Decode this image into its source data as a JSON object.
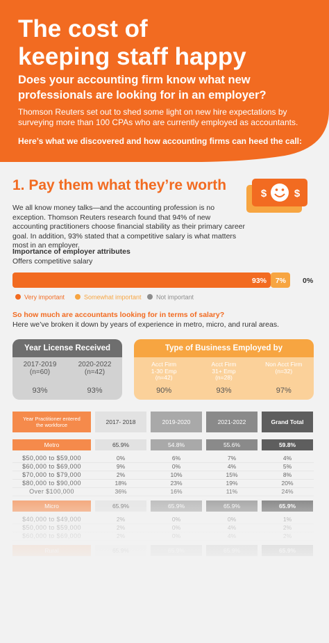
{
  "header": {
    "title_lines": [
      "The cost of",
      "keeping staff happy"
    ],
    "subtitle": "Does your accounting firm know what new professionals are looking for in an employer?",
    "intro": "Thomson Reuters set out to shed some light on new hire expectations by surveying more than 100 CPAs who are currently employed as accountants.",
    "cta": "Here’s what we discovered and how accounting firms can heed the call:"
  },
  "section": {
    "heading": "1. Pay them what they’re worth",
    "icon_symbols": [
      "$",
      "$"
    ],
    "body": "We all know money talks—and the accounting profession is no exception. Thomson Reuters research found that 94% of new accounting practitioners choose financial stability as their primary career goal. In addition, 93% stated that a competitive salary is what matters most in an employer."
  },
  "chart_data": {
    "type": "bar",
    "orientation": "horizontal",
    "stacked": true,
    "title": "Importance of employer attributes",
    "categories": [
      "Offers competitive salary"
    ],
    "xlim": [
      0,
      100
    ],
    "series": [
      {
        "name": "Very important",
        "color": "#f26b21",
        "values": [
          93
        ],
        "value_labels": [
          "93%"
        ]
      },
      {
        "name": "Somewhat important",
        "color": "#f7a541",
        "values": [
          7
        ],
        "value_labels": [
          "7%"
        ]
      },
      {
        "name": "Not important",
        "color": "#8c8c8c",
        "values": [
          0
        ],
        "value_labels": [
          "0%"
        ]
      }
    ]
  },
  "salary": {
    "question": "So how much are accountants looking for in terms of salary?",
    "note": "Here we’ve broken it down by years of experience in metro, micro, and rural areas."
  },
  "cards": [
    {
      "title": "Year License Received",
      "columns": [
        {
          "label_lines": [
            "2017-2019",
            "(n=60)"
          ],
          "value": "93%"
        },
        {
          "label_lines": [
            "2020-2022",
            "(n=42)"
          ],
          "value": "93%"
        }
      ]
    },
    {
      "title": "Type of Business Employed by",
      "columns": [
        {
          "label_lines": [
            "Acct Firm",
            "1-30 Emp",
            "(n=42)"
          ],
          "value": "90%"
        },
        {
          "label_lines": [
            "Acct Firm",
            "31+ Emp",
            "(n=28)"
          ],
          "value": "93%"
        },
        {
          "label_lines": [
            "Non Acct Firm",
            "(n=32)"
          ],
          "value": "97%"
        }
      ]
    }
  ],
  "table": {
    "header": [
      "Year Practitioner entered the workforce",
      "2017- 2018",
      "2019-2020",
      "2021-2022",
      "Grand Total"
    ],
    "groups": [
      {
        "label": "Metro",
        "values": [
          "65.9%",
          "54.8%",
          "55.6%",
          "59.8%"
        ],
        "rows": [
          [
            "$50,000 to $59,000",
            "0%",
            "6%",
            "7%",
            "4%"
          ],
          [
            "$60,000 to $69,000",
            "9%",
            "0%",
            "4%",
            "5%"
          ],
          [
            "$70,000 to $79,000",
            "2%",
            "10%",
            "15%",
            "8%"
          ],
          [
            "$80,000 to $90,000",
            "18%",
            "23%",
            "19%",
            "20%"
          ],
          [
            "Over $100,000",
            "36%",
            "16%",
            "11%",
            "24%"
          ]
        ]
      },
      {
        "label": "Micro",
        "values": [
          "65.9%",
          "65.9%",
          "65.9%",
          "65.9%"
        ],
        "rows": [
          [
            "$40,000 to $49,000",
            "2%",
            "0%",
            "0%",
            "1%"
          ],
          [
            "$50,000 to $59,000",
            "2%",
            "0%",
            "4%",
            "2%"
          ],
          [
            "$60,000 to $69,000",
            "2%",
            "0%",
            "4%",
            "2%"
          ]
        ]
      },
      {
        "label": "Rural",
        "values": [
          "65.9%",
          "65.9%",
          "65.9%",
          "65.9%"
        ],
        "rows": []
      }
    ]
  }
}
